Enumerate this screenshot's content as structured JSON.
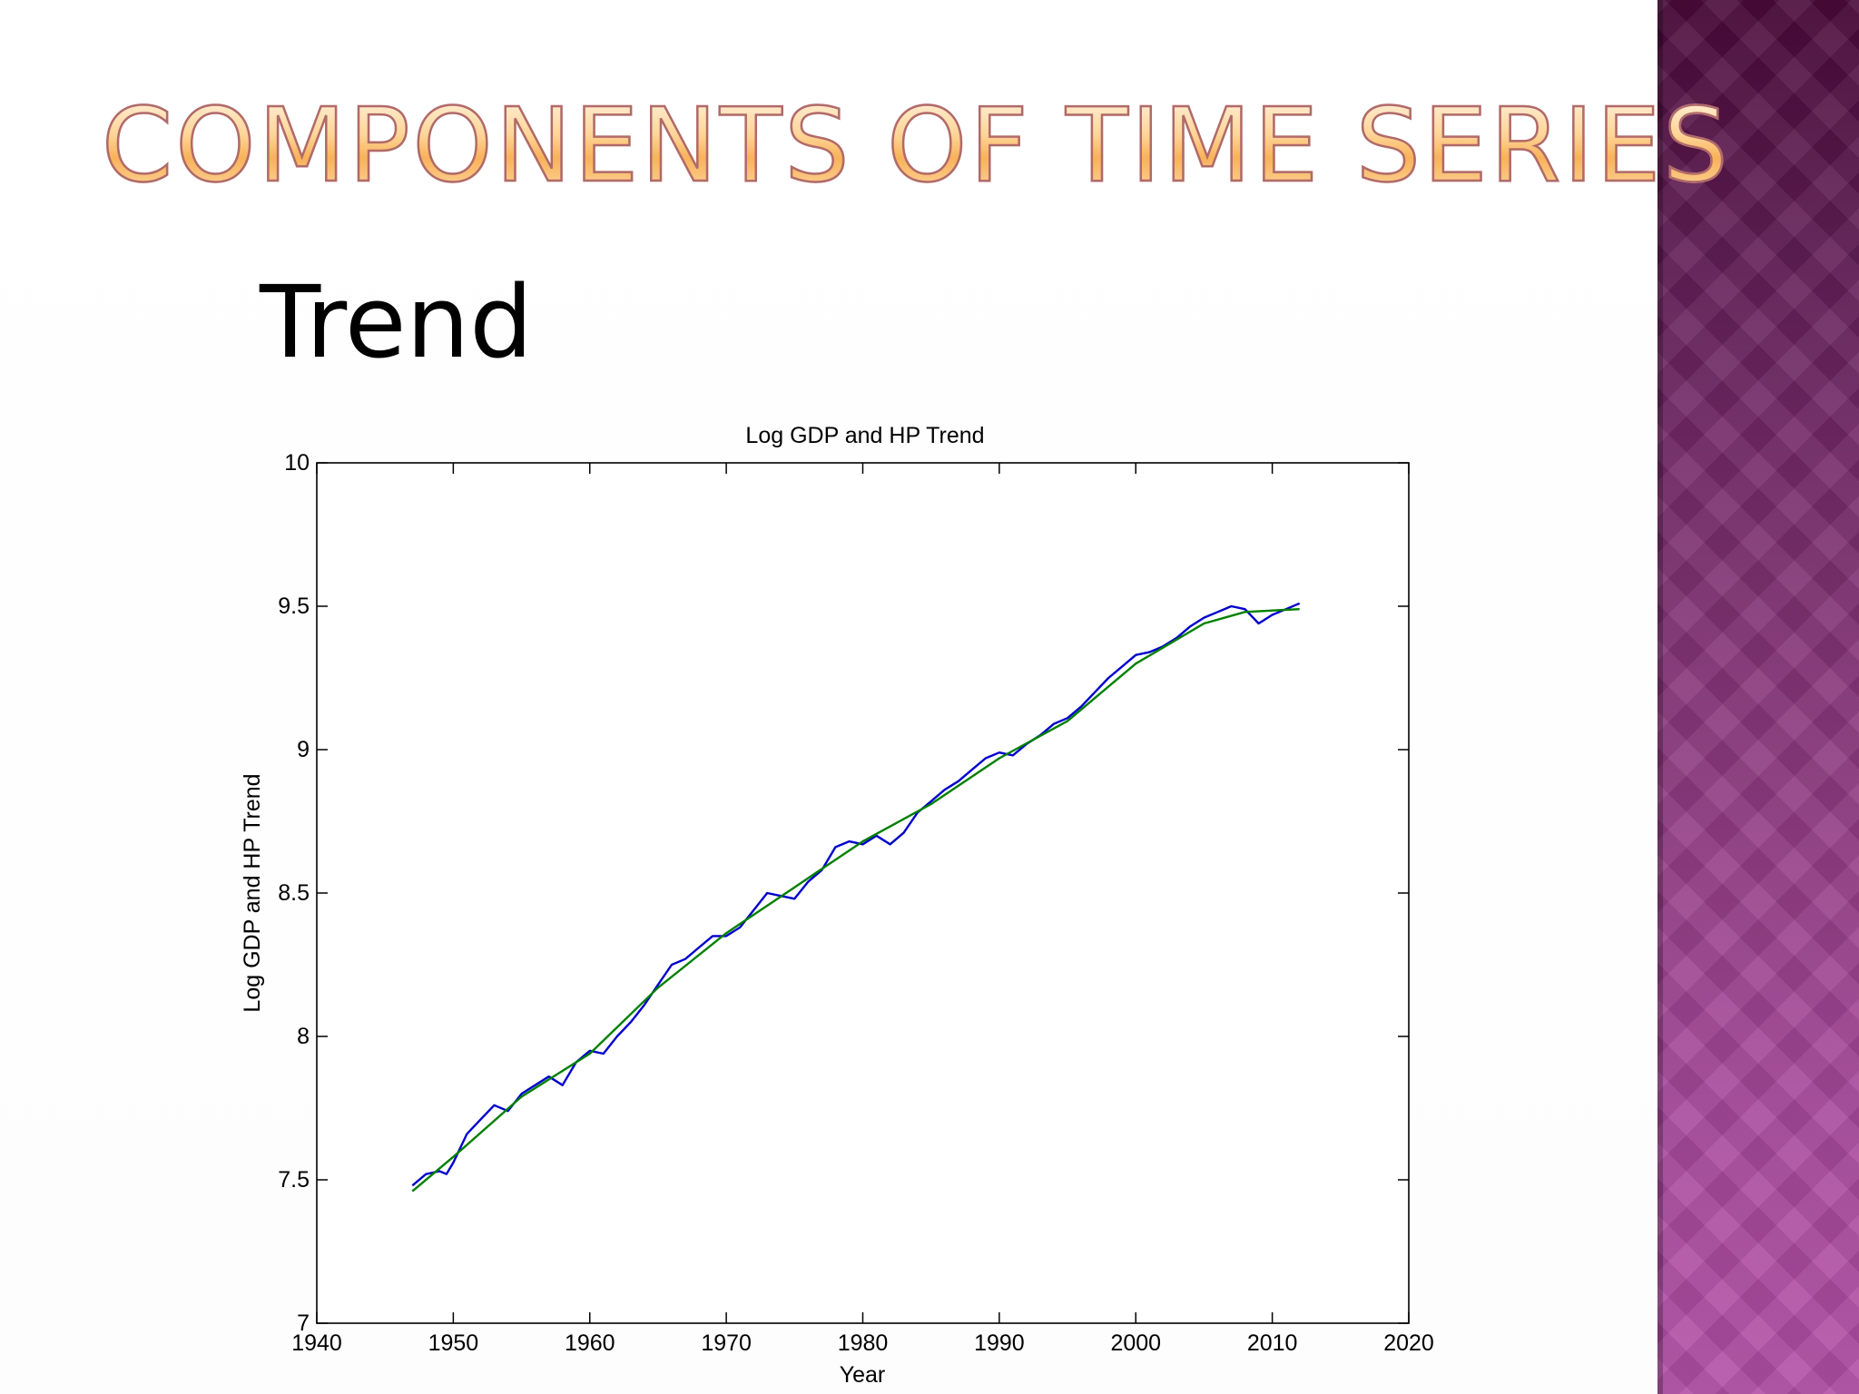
{
  "slide": {
    "title": "Components of Time Series",
    "subtitle": "Trend"
  },
  "colors": {
    "title_fill": "#fcc880",
    "title_outline": "#b06a6a",
    "band_top": "#4a0a3a",
    "band_bottom": "#b24fa6",
    "series_gdp": "#0000cc",
    "series_trend": "#008000"
  },
  "chart_data": {
    "type": "line",
    "title": "Log GDP and HP Trend",
    "xlabel": "Year",
    "ylabel": "Log GDP and HP Trend",
    "xlim": [
      1940,
      2020
    ],
    "ylim": [
      7,
      10
    ],
    "x_ticks": [
      "1940",
      "1950",
      "1960",
      "1970",
      "1980",
      "1990",
      "2000",
      "2010",
      "2020"
    ],
    "y_ticks": [
      "7",
      "7.5",
      "8",
      "8.5",
      "9",
      "9.5",
      "10"
    ],
    "grid": false,
    "legend": "none",
    "series": [
      {
        "color": "#0000cc",
        "x": [
          1947,
          1948,
          1949,
          1949.5,
          1950,
          1951,
          1952,
          1953,
          1954,
          1955,
          1956,
          1957,
          1958,
          1959,
          1960,
          1961,
          1962,
          1963,
          1964,
          1965,
          1966,
          1967,
          1968,
          1969,
          1970,
          1971,
          1972,
          1973,
          1974,
          1975,
          1976,
          1977,
          1978,
          1979,
          1980,
          1981,
          1982,
          1983,
          1984,
          1985,
          1986,
          1987,
          1988,
          1989,
          1990,
          1991,
          1992,
          1993,
          1994,
          1995,
          1996,
          1997,
          1998,
          1999,
          2000,
          2001,
          2002,
          2003,
          2004,
          2005,
          2006,
          2007,
          2008,
          2009,
          2010,
          2011,
          2012
        ],
        "y": [
          7.48,
          7.52,
          7.53,
          7.52,
          7.56,
          7.66,
          7.71,
          7.76,
          7.74,
          7.8,
          7.83,
          7.86,
          7.83,
          7.91,
          7.95,
          7.94,
          8.0,
          8.05,
          8.11,
          8.18,
          8.25,
          8.27,
          8.31,
          8.35,
          8.35,
          8.38,
          8.44,
          8.5,
          8.49,
          8.48,
          8.54,
          8.58,
          8.66,
          8.68,
          8.67,
          8.7,
          8.67,
          8.71,
          8.78,
          8.82,
          8.86,
          8.89,
          8.93,
          8.97,
          8.99,
          8.98,
          9.02,
          9.05,
          9.09,
          9.11,
          9.15,
          9.2,
          9.25,
          9.29,
          9.33,
          9.34,
          9.36,
          9.39,
          9.43,
          9.46,
          9.48,
          9.5,
          9.49,
          9.44,
          9.47,
          9.49,
          9.51
        ]
      },
      {
        "color": "#008000",
        "x": [
          1947,
          1950,
          1955,
          1960,
          1965,
          1970,
          1975,
          1980,
          1985,
          1990,
          1995,
          2000,
          2005,
          2008,
          2010,
          2012
        ],
        "y": [
          7.46,
          7.58,
          7.79,
          7.94,
          8.17,
          8.36,
          8.52,
          8.68,
          8.81,
          8.97,
          9.1,
          9.3,
          9.44,
          9.48,
          9.485,
          9.49
        ]
      }
    ]
  }
}
